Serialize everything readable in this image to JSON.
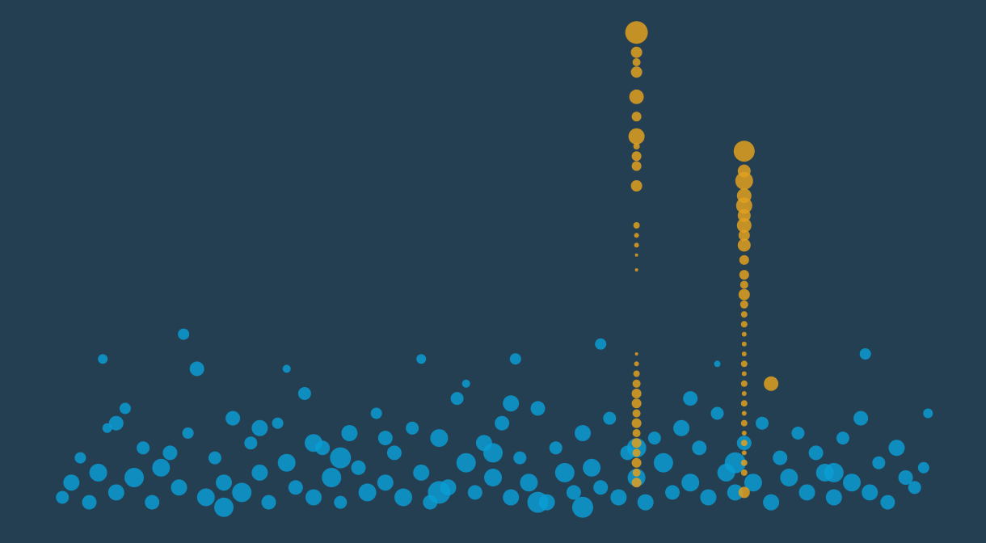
{
  "chart_data": {
    "type": "scatter",
    "title": "",
    "xlabel": "",
    "ylabel": "",
    "xlim": [
      0,
      100
    ],
    "ylim": [
      0,
      100
    ],
    "grid": false,
    "legend": "none",
    "colors": {
      "background": "#243f52",
      "baseline": "#0a9fd6",
      "highlight": "#e0a020"
    },
    "series": [
      {
        "key": "baseline",
        "points": [
          {
            "x": 2,
            "y": 4,
            "r": 8
          },
          {
            "x": 3,
            "y": 7,
            "r": 10
          },
          {
            "x": 4,
            "y": 12,
            "r": 7
          },
          {
            "x": 5,
            "y": 3,
            "r": 9
          },
          {
            "x": 6,
            "y": 9,
            "r": 11
          },
          {
            "x": 7,
            "y": 18,
            "r": 6
          },
          {
            "x": 8,
            "y": 5,
            "r": 10
          },
          {
            "x": 9,
            "y": 22,
            "r": 7
          },
          {
            "x": 10,
            "y": 8,
            "r": 12
          },
          {
            "x": 11,
            "y": 14,
            "r": 8
          },
          {
            "x": 12,
            "y": 3,
            "r": 9
          },
          {
            "x": 13,
            "y": 10,
            "r": 11
          },
          {
            "x": 15,
            "y": 6,
            "r": 10
          },
          {
            "x": 16,
            "y": 17,
            "r": 7
          },
          {
            "x": 17,
            "y": 30,
            "r": 9
          },
          {
            "x": 18,
            "y": 4,
            "r": 11
          },
          {
            "x": 19,
            "y": 12,
            "r": 8
          },
          {
            "x": 20,
            "y": 7,
            "r": 10
          },
          {
            "x": 21,
            "y": 20,
            "r": 9
          },
          {
            "x": 22,
            "y": 5,
            "r": 12
          },
          {
            "x": 23,
            "y": 15,
            "r": 8
          },
          {
            "x": 24,
            "y": 9,
            "r": 10
          },
          {
            "x": 25,
            "y": 3,
            "r": 9
          },
          {
            "x": 26,
            "y": 19,
            "r": 7
          },
          {
            "x": 27,
            "y": 11,
            "r": 11
          },
          {
            "x": 28,
            "y": 6,
            "r": 9
          },
          {
            "x": 29,
            "y": 25,
            "r": 8
          },
          {
            "x": 30,
            "y": 4,
            "r": 10
          },
          {
            "x": 31,
            "y": 14,
            "r": 9
          },
          {
            "x": 32,
            "y": 8,
            "r": 12
          },
          {
            "x": 33,
            "y": 3,
            "r": 8
          },
          {
            "x": 34,
            "y": 17,
            "r": 10
          },
          {
            "x": 35,
            "y": 10,
            "r": 9
          },
          {
            "x": 36,
            "y": 5,
            "r": 11
          },
          {
            "x": 37,
            "y": 21,
            "r": 7
          },
          {
            "x": 38,
            "y": 7,
            "r": 10
          },
          {
            "x": 39,
            "y": 13,
            "r": 9
          },
          {
            "x": 40,
            "y": 4,
            "r": 11
          },
          {
            "x": 41,
            "y": 18,
            "r": 8
          },
          {
            "x": 42,
            "y": 9,
            "r": 10
          },
          {
            "x": 43,
            "y": 3,
            "r": 9
          },
          {
            "x": 44,
            "y": 16,
            "r": 11
          },
          {
            "x": 45,
            "y": 6,
            "r": 10
          },
          {
            "x": 46,
            "y": 24,
            "r": 8
          },
          {
            "x": 47,
            "y": 11,
            "r": 12
          },
          {
            "x": 48,
            "y": 5,
            "r": 9
          },
          {
            "x": 49,
            "y": 15,
            "r": 10
          },
          {
            "x": 50,
            "y": 8,
            "r": 11
          },
          {
            "x": 51,
            "y": 19,
            "r": 9
          },
          {
            "x": 52,
            "y": 4,
            "r": 10
          },
          {
            "x": 53,
            "y": 12,
            "r": 8
          },
          {
            "x": 54,
            "y": 7,
            "r": 11
          },
          {
            "x": 55,
            "y": 22,
            "r": 9
          },
          {
            "x": 56,
            "y": 3,
            "r": 10
          },
          {
            "x": 57,
            "y": 14,
            "r": 8
          },
          {
            "x": 58,
            "y": 9,
            "r": 12
          },
          {
            "x": 59,
            "y": 5,
            "r": 9
          },
          {
            "x": 60,
            "y": 17,
            "r": 10
          },
          {
            "x": 61,
            "y": 10,
            "r": 11
          },
          {
            "x": 62,
            "y": 6,
            "r": 9
          },
          {
            "x": 63,
            "y": 20,
            "r": 8
          },
          {
            "x": 64,
            "y": 4,
            "r": 10
          },
          {
            "x": 65,
            "y": 13,
            "r": 9
          },
          {
            "x": 66,
            "y": 8,
            "r": 11
          },
          {
            "x": 67,
            "y": 3,
            "r": 10
          },
          {
            "x": 68,
            "y": 16,
            "r": 8
          },
          {
            "x": 69,
            "y": 11,
            "r": 12
          },
          {
            "x": 70,
            "y": 5,
            "r": 9
          },
          {
            "x": 71,
            "y": 18,
            "r": 10
          },
          {
            "x": 72,
            "y": 7,
            "r": 11
          },
          {
            "x": 73,
            "y": 14,
            "r": 9
          },
          {
            "x": 74,
            "y": 4,
            "r": 10
          },
          {
            "x": 75,
            "y": 21,
            "r": 8
          },
          {
            "x": 76,
            "y": 9,
            "r": 11
          },
          {
            "x": 77,
            "y": 5,
            "r": 10
          },
          {
            "x": 78,
            "y": 15,
            "r": 9
          },
          {
            "x": 79,
            "y": 7,
            "r": 11
          },
          {
            "x": 80,
            "y": 19,
            "r": 8
          },
          {
            "x": 81,
            "y": 3,
            "r": 10
          },
          {
            "x": 82,
            "y": 12,
            "r": 9
          },
          {
            "x": 83,
            "y": 8,
            "r": 11
          },
          {
            "x": 84,
            "y": 17,
            "r": 8
          },
          {
            "x": 85,
            "y": 5,
            "r": 10
          },
          {
            "x": 86,
            "y": 13,
            "r": 9
          },
          {
            "x": 87,
            "y": 9,
            "r": 11
          },
          {
            "x": 88,
            "y": 4,
            "r": 10
          },
          {
            "x": 89,
            "y": 16,
            "r": 8
          },
          {
            "x": 90,
            "y": 7,
            "r": 11
          },
          {
            "x": 91,
            "y": 20,
            "r": 9
          },
          {
            "x": 92,
            "y": 5,
            "r": 10
          },
          {
            "x": 93,
            "y": 11,
            "r": 8
          },
          {
            "x": 94,
            "y": 3,
            "r": 9
          },
          {
            "x": 95,
            "y": 14,
            "r": 10
          },
          {
            "x": 96,
            "y": 8,
            "r": 9
          },
          {
            "x": 97,
            "y": 6,
            "r": 8
          },
          {
            "x": 98,
            "y": 10,
            "r": 7
          },
          {
            "x": 14,
            "y": 13,
            "r": 9
          },
          {
            "x": 20,
            "y": 2,
            "r": 12
          },
          {
            "x": 33,
            "y": 12,
            "r": 13
          },
          {
            "x": 44,
            "y": 5,
            "r": 14
          },
          {
            "x": 55,
            "y": 3,
            "r": 13
          },
          {
            "x": 66,
            "y": 14,
            "r": 12
          },
          {
            "x": 77,
            "y": 11,
            "r": 13
          },
          {
            "x": 88,
            "y": 9,
            "r": 12
          },
          {
            "x": 24,
            "y": 18,
            "r": 10
          },
          {
            "x": 38,
            "y": 16,
            "r": 9
          },
          {
            "x": 52,
            "y": 23,
            "r": 10
          },
          {
            "x": 72,
            "y": 24,
            "r": 9
          },
          {
            "x": 8,
            "y": 19,
            "r": 9
          },
          {
            "x": 50,
            "y": 13,
            "r": 12
          },
          {
            "x": 60,
            "y": 2,
            "r": 13
          },
          {
            "x": 30,
            "y": 15,
            "r": 11
          },
          {
            "x": 15.5,
            "y": 37,
            "r": 7
          },
          {
            "x": 42,
            "y": 32,
            "r": 6
          },
          {
            "x": 52.5,
            "y": 32,
            "r": 7
          },
          {
            "x": 62,
            "y": 35,
            "r": 7
          },
          {
            "x": 91.5,
            "y": 33,
            "r": 7
          },
          {
            "x": 27,
            "y": 30,
            "r": 5
          },
          {
            "x": 47,
            "y": 27,
            "r": 5
          },
          {
            "x": 75,
            "y": 31,
            "r": 4
          },
          {
            "x": 98.5,
            "y": 21,
            "r": 6
          },
          {
            "x": 6.5,
            "y": 32,
            "r": 6
          }
        ]
      },
      {
        "key": "highlight",
        "points": [
          {
            "x": 66,
            "y": 98,
            "r": 14
          },
          {
            "x": 66,
            "y": 94,
            "r": 7
          },
          {
            "x": 66,
            "y": 92,
            "r": 5
          },
          {
            "x": 66,
            "y": 90,
            "r": 7
          },
          {
            "x": 66,
            "y": 85,
            "r": 9
          },
          {
            "x": 66,
            "y": 81,
            "r": 6
          },
          {
            "x": 66,
            "y": 77,
            "r": 10
          },
          {
            "x": 66,
            "y": 75,
            "r": 4
          },
          {
            "x": 66,
            "y": 73,
            "r": 6
          },
          {
            "x": 66,
            "y": 71,
            "r": 6
          },
          {
            "x": 66,
            "y": 67,
            "r": 7
          },
          {
            "x": 66,
            "y": 59,
            "r": 4
          },
          {
            "x": 66,
            "y": 57,
            "r": 3
          },
          {
            "x": 66,
            "y": 55,
            "r": 3
          },
          {
            "x": 66,
            "y": 53,
            "r": 2
          },
          {
            "x": 66,
            "y": 50,
            "r": 2
          },
          {
            "x": 66,
            "y": 33,
            "r": 2
          },
          {
            "x": 66,
            "y": 31,
            "r": 3
          },
          {
            "x": 66,
            "y": 29,
            "r": 4
          },
          {
            "x": 66,
            "y": 27,
            "r": 5
          },
          {
            "x": 66,
            "y": 25,
            "r": 6
          },
          {
            "x": 66,
            "y": 23,
            "r": 6
          },
          {
            "x": 66,
            "y": 21,
            "r": 5
          },
          {
            "x": 66,
            "y": 19,
            "r": 6
          },
          {
            "x": 66,
            "y": 17,
            "r": 5
          },
          {
            "x": 66,
            "y": 15,
            "r": 6
          },
          {
            "x": 66,
            "y": 13,
            "r": 5
          },
          {
            "x": 66,
            "y": 11,
            "r": 6
          },
          {
            "x": 66,
            "y": 9,
            "r": 5
          },
          {
            "x": 66,
            "y": 7,
            "r": 6
          },
          {
            "x": 78,
            "y": 74,
            "r": 13
          },
          {
            "x": 78,
            "y": 70,
            "r": 8
          },
          {
            "x": 78,
            "y": 68,
            "r": 11
          },
          {
            "x": 78,
            "y": 65,
            "r": 9
          },
          {
            "x": 78,
            "y": 63,
            "r": 10
          },
          {
            "x": 78,
            "y": 61,
            "r": 8
          },
          {
            "x": 78,
            "y": 59,
            "r": 9
          },
          {
            "x": 78,
            "y": 57,
            "r": 7
          },
          {
            "x": 78,
            "y": 55,
            "r": 8
          },
          {
            "x": 78,
            "y": 52,
            "r": 6
          },
          {
            "x": 78,
            "y": 49,
            "r": 6
          },
          {
            "x": 78,
            "y": 47,
            "r": 5
          },
          {
            "x": 78,
            "y": 45,
            "r": 7
          },
          {
            "x": 78,
            "y": 43,
            "r": 5
          },
          {
            "x": 78,
            "y": 41,
            "r": 4
          },
          {
            "x": 78,
            "y": 39,
            "r": 4
          },
          {
            "x": 78,
            "y": 37,
            "r": 3
          },
          {
            "x": 78,
            "y": 35,
            "r": 3
          },
          {
            "x": 78,
            "y": 33,
            "r": 3
          },
          {
            "x": 78,
            "y": 31,
            "r": 4
          },
          {
            "x": 78,
            "y": 29,
            "r": 3
          },
          {
            "x": 78,
            "y": 27,
            "r": 4
          },
          {
            "x": 78,
            "y": 25,
            "r": 3
          },
          {
            "x": 78,
            "y": 23,
            "r": 4
          },
          {
            "x": 78,
            "y": 21,
            "r": 3
          },
          {
            "x": 78,
            "y": 19,
            "r": 4
          },
          {
            "x": 78,
            "y": 17,
            "r": 3
          },
          {
            "x": 78,
            "y": 15,
            "r": 4
          },
          {
            "x": 78,
            "y": 13,
            "r": 3
          },
          {
            "x": 78,
            "y": 11,
            "r": 4
          },
          {
            "x": 78,
            "y": 9,
            "r": 4
          },
          {
            "x": 78,
            "y": 5,
            "r": 7
          },
          {
            "x": 81,
            "y": 27,
            "r": 9
          }
        ]
      }
    ]
  }
}
